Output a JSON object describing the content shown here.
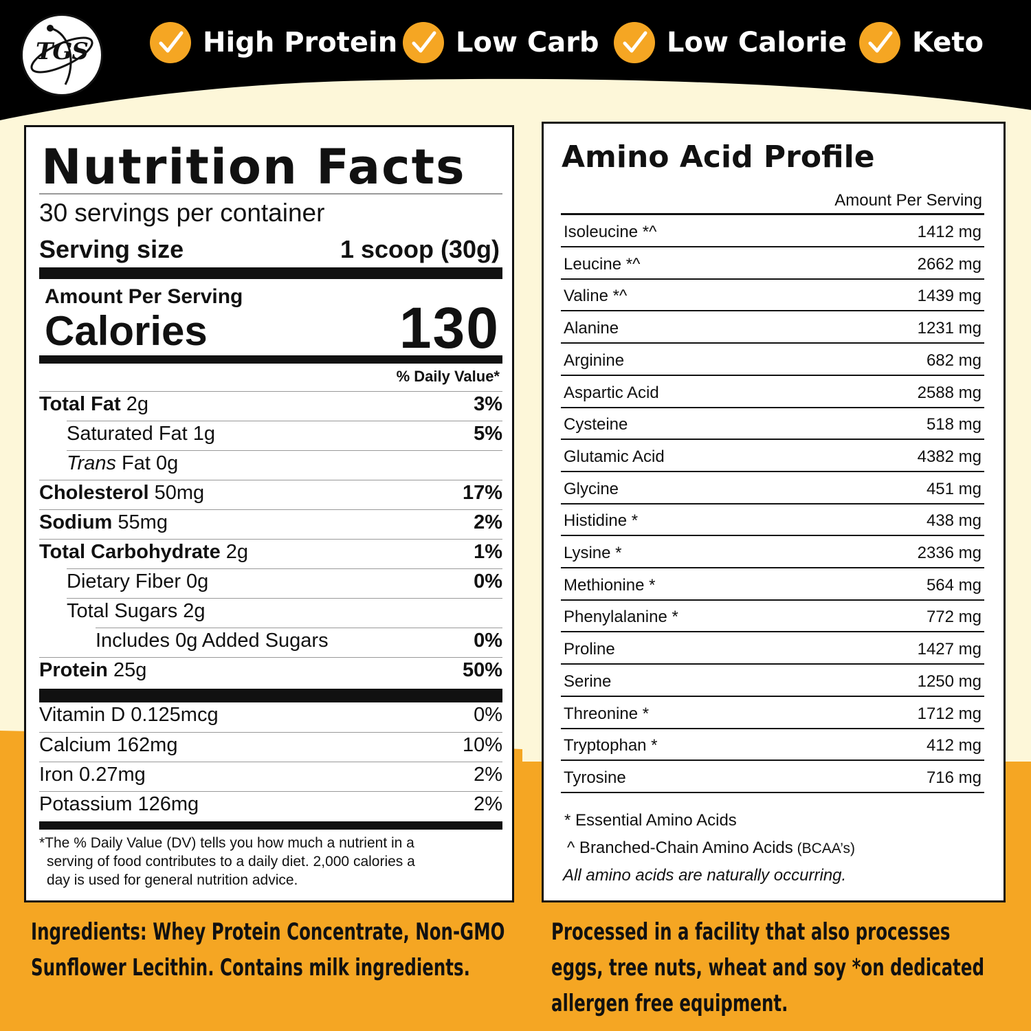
{
  "colors": {
    "accent": "#f5a623",
    "header_bg": "#000000",
    "cream": "#fdf7d9",
    "lower_bg": "#f5a623"
  },
  "logo": {
    "text": "TGS"
  },
  "badges": [
    {
      "label": "High Protein",
      "icon": "checkmark-icon"
    },
    {
      "label": "Low Carb",
      "icon": "checkmark-icon"
    },
    {
      "label": "Low Calorie",
      "icon": "checkmark-icon"
    },
    {
      "label": "Keto",
      "icon": "checkmark-icon"
    }
  ],
  "nutrition": {
    "title": "Nutrition Facts",
    "servings": "30 servings per container",
    "serving_size_label": "Serving size",
    "serving_size_value": "1 scoop (30g)",
    "amount_per_serving": "Amount Per Serving",
    "calories_label": "Calories",
    "calories_value": "130",
    "dv_header": "% Daily Value*",
    "rows": [
      {
        "name": "Total Fat",
        "amount": " 2g",
        "dv": "3%"
      },
      {
        "name": "Saturated Fat 1g",
        "dv": "5%"
      },
      {
        "name_italic": "Trans",
        "name": " Fat 0g",
        "dv": ""
      },
      {
        "name": "Cholesterol",
        "amount": " 50mg",
        "dv": "17%"
      },
      {
        "name": "Sodium",
        "amount": " 55mg",
        "dv": "2%"
      },
      {
        "name": "Total Carbohydrate",
        "amount": " 2g",
        "dv": "1%"
      },
      {
        "name": "Dietary Fiber 0g",
        "dv": "0%"
      },
      {
        "name": "Total Sugars 2g",
        "dv": ""
      },
      {
        "name": "Includes 0g Added Sugars",
        "dv": "0%"
      },
      {
        "name": "Protein",
        "amount": " 25g",
        "dv": "50%"
      }
    ],
    "vitamins": [
      {
        "name": "Vitamin D 0.125mcg",
        "dv": "0%"
      },
      {
        "name": "Calcium 162mg",
        "dv": "10%"
      },
      {
        "name": "Iron 0.27mg",
        "dv": "2%"
      },
      {
        "name": "Potassium 126mg",
        "dv": "2%"
      }
    ],
    "footnote_1": "*The % Daily Value (DV) tells you how much a nutrient in a",
    "footnote_2": "serving of food contributes to a daily diet. 2,000 calories a",
    "footnote_3": "day is used for general nutrition advice."
  },
  "amino": {
    "title": "Amino Acid Profile",
    "column_header": "Amount Per Serving",
    "rows": [
      {
        "name": "Isoleucine *^",
        "amount": "1412 mg"
      },
      {
        "name": "Leucine *^",
        "amount": "2662 mg"
      },
      {
        "name": "Valine *^",
        "amount": "1439 mg"
      },
      {
        "name": "Alanine",
        "amount": "1231 mg"
      },
      {
        "name": "Arginine",
        "amount": "682 mg"
      },
      {
        "name": "Aspartic Acid",
        "amount": "2588 mg"
      },
      {
        "name": "Cysteine",
        "amount": "518 mg"
      },
      {
        "name": "Glutamic Acid",
        "amount": "4382 mg"
      },
      {
        "name": "Glycine",
        "amount": "451 mg"
      },
      {
        "name": "Histidine *",
        "amount": "438 mg"
      },
      {
        "name": "Lysine *",
        "amount": "2336 mg"
      },
      {
        "name": "Methionine *",
        "amount": "564 mg"
      },
      {
        "name": "Phenylalanine *",
        "amount": "772 mg"
      },
      {
        "name": "Proline",
        "amount": "1427 mg"
      },
      {
        "name": "Serine",
        "amount": "1250 mg"
      },
      {
        "name": "Threonine *",
        "amount": "1712 mg"
      },
      {
        "name": "Tryptophan *",
        "amount": "412 mg"
      },
      {
        "name": "Tyrosine",
        "amount": "716 mg"
      }
    ],
    "note_essential": "* Essential Amino Acids",
    "note_bcaa": "^ Branched-Chain Amino Acids",
    "note_bcaa_abbr": " (BCAA’s)",
    "note_natural": "All amino acids are naturally occurring."
  },
  "ingredients": {
    "line_1": "Ingredients: Whey Protein Concentrate, Non-GMO",
    "line_2": "Sunflower Lecithin. Contains milk ingredients."
  },
  "allergen": {
    "line_1": "Processed in a facility that also processes",
    "line_2": "eggs, tree nuts, wheat and soy *on dedicated",
    "line_3": "allergen free equipment."
  }
}
